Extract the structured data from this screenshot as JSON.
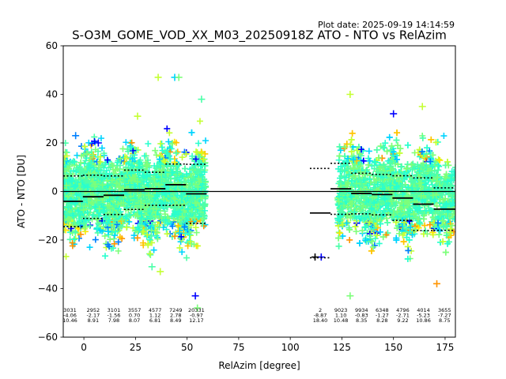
{
  "plot_date": "Plot date: 2025-09-19 14:14:59",
  "colors": {
    "scatter_palette": [
      "#0000ff",
      "#0080ff",
      "#00d4ff",
      "#29ffce",
      "#4dffaa",
      "#7dff7a",
      "#c4ff33",
      "#ffe600",
      "#ffc400",
      "#ff9400"
    ],
    "median_line": "#000000",
    "percentile_line": "#000000",
    "zero_line": "#000000"
  },
  "chart_data": {
    "type": "scatter",
    "title": "S-O3M_GOME_VOD_XX_M03_20250918Z ATO - NTO vs RelAzim",
    "xlabel": "RelAzim [degree]",
    "ylabel": "ATO - NTO [DU]",
    "xlim": [
      -10,
      180
    ],
    "ylim": [
      -60,
      60
    ],
    "xticks": [
      0,
      25,
      50,
      75,
      100,
      125,
      150,
      175
    ],
    "yticks": [
      -60,
      -40,
      -20,
      0,
      20,
      40,
      60
    ],
    "grid": false,
    "zero_line": true,
    "bins": [
      {
        "start": -10,
        "end": -0.5,
        "count": "3031",
        "mean": "-4.06",
        "std": "10.46",
        "p_hi": 6.4,
        "p_lo": -14.5
      },
      {
        "start": -0.5,
        "end": 9.5,
        "count": "2952",
        "mean": "-2.17",
        "std": "8.91",
        "p_hi": 6.7,
        "p_lo": -11.1
      },
      {
        "start": 9.5,
        "end": 19.5,
        "count": "3101",
        "mean": "-1.56",
        "std": "7.98",
        "p_hi": 6.4,
        "p_lo": -9.5
      },
      {
        "start": 19.5,
        "end": 29.5,
        "count": "3557",
        "mean": "0.70",
        "std": "8.07",
        "p_hi": 8.8,
        "p_lo": -7.4
      },
      {
        "start": 29.5,
        "end": 39.5,
        "count": "4577",
        "mean": "1.12",
        "std": "6.81",
        "p_hi": 7.9,
        "p_lo": -5.7
      },
      {
        "start": 39.5,
        "end": 49.5,
        "count": "7249",
        "mean": "2.78",
        "std": "8.49",
        "p_hi": 11.3,
        "p_lo": -5.7
      },
      {
        "start": 49.5,
        "end": 59.5,
        "count": "20331",
        "mean": "-0.97",
        "std": "12.17",
        "p_hi": 11.2,
        "p_lo": -13.1
      },
      {
        "start": 109.5,
        "end": 119.5,
        "count": "2",
        "mean": "-8.87",
        "std": "18.40",
        "p_hi": 9.5,
        "p_lo": -27.3
      },
      {
        "start": 119.5,
        "end": 129.5,
        "count": "9023",
        "mean": "1.10",
        "std": "10.48",
        "p_hi": 11.6,
        "p_lo": -9.4
      },
      {
        "start": 129.5,
        "end": 139.5,
        "count": "9934",
        "mean": "-0.83",
        "std": "8.35",
        "p_hi": 7.5,
        "p_lo": -9.2
      },
      {
        "start": 139.5,
        "end": 149.5,
        "count": "6348",
        "mean": "-1.27",
        "std": "8.28",
        "p_hi": 7.0,
        "p_lo": -9.6
      },
      {
        "start": 149.5,
        "end": 159.5,
        "count": "4796",
        "mean": "-2.71",
        "std": "9.22",
        "p_hi": 6.5,
        "p_lo": -11.9
      },
      {
        "start": 159.5,
        "end": 169.5,
        "count": "4014",
        "mean": "-5.23",
        "std": "10.86",
        "p_hi": 5.6,
        "p_lo": -16.1
      },
      {
        "start": 169.5,
        "end": 180,
        "count": "3655",
        "mean": "-7.27",
        "std": "8.75",
        "p_hi": 1.5,
        "p_lo": -16.0
      }
    ],
    "scatter_clouds": [
      {
        "x_range": [
          -10,
          59
        ],
        "y_center": -1,
        "y_spread": 24
      },
      {
        "x_range": [
          123,
          180
        ],
        "y_center": -1,
        "y_spread": 24
      }
    ],
    "outliers": [
      {
        "x": 7,
        "y": 20,
        "color": "#0000ff"
      },
      {
        "x": 36,
        "y": 47,
        "color": "#c4ff33"
      },
      {
        "x": 44,
        "y": 47,
        "color": "#00d4ff"
      },
      {
        "x": 46,
        "y": 47,
        "color": "#7dff7a"
      },
      {
        "x": 57,
        "y": 38,
        "color": "#4dffaa"
      },
      {
        "x": 54,
        "y": -43,
        "color": "#0000ff"
      },
      {
        "x": 55,
        "y": -48,
        "color": "#7dff7a"
      },
      {
        "x": 37,
        "y": -33,
        "color": "#c4ff33"
      },
      {
        "x": 33,
        "y": -31,
        "color": "#4dffaa"
      },
      {
        "x": 115,
        "y": -27,
        "color": "#0000ff"
      },
      {
        "x": 112,
        "y": -27,
        "color": "#000000"
      },
      {
        "x": 129,
        "y": -43,
        "color": "#7dff7a"
      },
      {
        "x": 129,
        "y": 40,
        "color": "#c4ff33"
      },
      {
        "x": 150,
        "y": 32,
        "color": "#0000ff"
      },
      {
        "x": 164,
        "y": 35,
        "color": "#c4ff33"
      },
      {
        "x": 171,
        "y": -38,
        "color": "#ff9400"
      },
      {
        "x": 26,
        "y": 31,
        "color": "#c4ff33"
      },
      {
        "x": -4,
        "y": 23,
        "color": "#0080ff"
      }
    ]
  }
}
